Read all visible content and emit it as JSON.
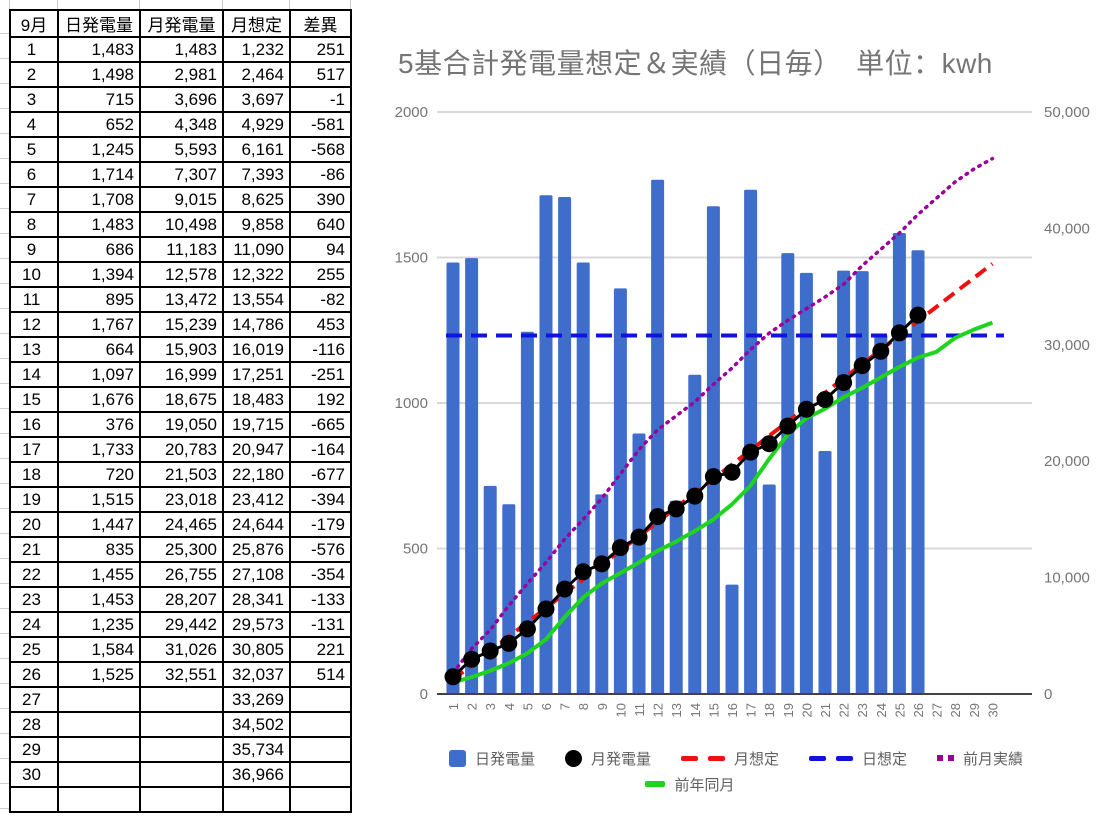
{
  "table": {
    "headers": [
      "9月",
      "日発電量",
      "月発電量",
      "月想定",
      "差異"
    ],
    "rows": [
      [
        "1",
        "1,483",
        "1,483",
        "1,232",
        "251",
        "pos"
      ],
      [
        "2",
        "1,498",
        "2,981",
        "2,464",
        "517",
        "pos"
      ],
      [
        "3",
        "715",
        "3,696",
        "3,697",
        "-1",
        "neg"
      ],
      [
        "4",
        "652",
        "4,348",
        "4,929",
        "-581",
        "neg"
      ],
      [
        "5",
        "1,245",
        "5,593",
        "6,161",
        "-568",
        "neg"
      ],
      [
        "6",
        "1,714",
        "7,307",
        "7,393",
        "-86",
        "neg"
      ],
      [
        "7",
        "1,708",
        "9,015",
        "8,625",
        "390",
        "pos"
      ],
      [
        "8",
        "1,483",
        "10,498",
        "9,858",
        "640",
        "pos"
      ],
      [
        "9",
        "686",
        "11,183",
        "11,090",
        "94",
        "pos"
      ],
      [
        "10",
        "1,394",
        "12,578",
        "12,322",
        "255",
        "pos"
      ],
      [
        "11",
        "895",
        "13,472",
        "13,554",
        "-82",
        "neg"
      ],
      [
        "12",
        "1,767",
        "15,239",
        "14,786",
        "453",
        "pos"
      ],
      [
        "13",
        "664",
        "15,903",
        "16,019",
        "-116",
        "neg"
      ],
      [
        "14",
        "1,097",
        "16,999",
        "17,251",
        "-251",
        "neg"
      ],
      [
        "15",
        "1,676",
        "18,675",
        "18,483",
        "192",
        "pos"
      ],
      [
        "16",
        "376",
        "19,050",
        "19,715",
        "-665",
        "neg"
      ],
      [
        "17",
        "1,733",
        "20,783",
        "20,947",
        "-164",
        "neg"
      ],
      [
        "18",
        "720",
        "21,503",
        "22,180",
        "-677",
        "neg"
      ],
      [
        "19",
        "1,515",
        "23,018",
        "23,412",
        "-394",
        "neg"
      ],
      [
        "20",
        "1,447",
        "24,465",
        "24,644",
        "-179",
        "neg"
      ],
      [
        "21",
        "835",
        "25,300",
        "25,876",
        "-576",
        "neg"
      ],
      [
        "22",
        "1,455",
        "26,755",
        "27,108",
        "-354",
        "neg"
      ],
      [
        "23",
        "1,453",
        "28,207",
        "28,341",
        "-133",
        "neg"
      ],
      [
        "24",
        "1,235",
        "29,442",
        "29,573",
        "-131",
        "neg"
      ],
      [
        "25",
        "1,584",
        "31,026",
        "30,805",
        "221",
        "pos"
      ],
      [
        "26",
        "1,525",
        "32,551",
        "32,037",
        "514",
        "pos"
      ],
      [
        "27",
        "",
        "",
        "33,269",
        "",
        ""
      ],
      [
        "28",
        "",
        "",
        "34,502",
        "",
        ""
      ],
      [
        "29",
        "",
        "",
        "35,734",
        "",
        ""
      ],
      [
        "30",
        "",
        "",
        "36,966",
        "",
        ""
      ]
    ]
  },
  "chart": {
    "title": "5基合計発電量想定＆実績（日毎）　単位：kwh",
    "legend": [
      {
        "label": "日発電量",
        "marker": "square",
        "color": "#3e6dcb",
        "row": 1
      },
      {
        "label": "月発電量",
        "marker": "circle",
        "color": "#000000",
        "row": 1
      },
      {
        "label": "月想定",
        "marker": "dashes",
        "color": "#ee1111",
        "row": 1
      },
      {
        "label": "日想定",
        "marker": "dashes",
        "color": "#1212dd",
        "row": 1
      },
      {
        "label": "前月実績",
        "marker": "dots",
        "color": "#990099",
        "row": 1
      },
      {
        "label": "前年同月",
        "marker": "dash",
        "color": "#1fd41f",
        "row": 2
      }
    ]
  },
  "chart_data": {
    "type": "combo",
    "title": "5基合計発電量想定＆実績（日毎）　単位：kwh",
    "x_labels": [
      1,
      2,
      3,
      4,
      5,
      6,
      7,
      8,
      9,
      10,
      11,
      12,
      13,
      14,
      15,
      16,
      17,
      18,
      19,
      20,
      21,
      22,
      23,
      24,
      25,
      26,
      27,
      28,
      29,
      30
    ],
    "left_axis": {
      "max": 2000,
      "ticks": [
        0,
        500,
        1000,
        1500,
        2000
      ]
    },
    "right_axis": {
      "max": 50000,
      "ticks": [
        0,
        10000,
        20000,
        30000,
        40000,
        50000
      ]
    },
    "series": [
      {
        "name": "日発電量",
        "type": "bar",
        "axis": "left",
        "color": "#3e6dcb",
        "values": [
          1483,
          1498,
          715,
          652,
          1245,
          1714,
          1708,
          1483,
          686,
          1394,
          895,
          1767,
          664,
          1097,
          1676,
          376,
          1733,
          720,
          1515,
          1447,
          835,
          1455,
          1453,
          1235,
          1584,
          1525,
          null,
          null,
          null,
          null
        ]
      },
      {
        "name": "月発電量",
        "type": "line_dots",
        "axis": "right",
        "color": "#000000",
        "values": [
          1483,
          2981,
          3696,
          4348,
          5593,
          7307,
          9015,
          10498,
          11183,
          12578,
          13472,
          15239,
          15903,
          16999,
          18675,
          19050,
          20783,
          21503,
          23018,
          24465,
          25300,
          26755,
          28207,
          29442,
          31026,
          32551,
          null,
          null,
          null,
          null
        ]
      },
      {
        "name": "月想定",
        "type": "line_dashed",
        "axis": "right",
        "color": "#ee1111",
        "values": [
          1232,
          2464,
          3697,
          4929,
          6161,
          7393,
          8625,
          9858,
          11090,
          12322,
          13554,
          14786,
          16019,
          17251,
          18483,
          19715,
          20947,
          22180,
          23412,
          24644,
          25876,
          27108,
          28341,
          29573,
          30805,
          32037,
          33269,
          34502,
          35734,
          36966
        ]
      },
      {
        "name": "日想定",
        "type": "line_dashed",
        "axis": "left",
        "color": "#1212dd",
        "values": [
          1232,
          1232,
          1232,
          1232,
          1232,
          1232,
          1232,
          1232,
          1232,
          1232,
          1232,
          1232,
          1232,
          1232,
          1232,
          1232,
          1232,
          1232,
          1232,
          1232,
          1232,
          1232,
          1232,
          1232,
          1232,
          1232,
          1232,
          1232,
          1232,
          1232
        ]
      },
      {
        "name": "前月実績",
        "type": "line_dotted",
        "axis": "right",
        "color": "#990099",
        "values": [
          1800,
          3900,
          5500,
          7600,
          9500,
          11300,
          13300,
          15000,
          16800,
          18900,
          21000,
          22700,
          23900,
          25100,
          26600,
          28000,
          29600,
          31000,
          32100,
          33100,
          34100,
          35200,
          36800,
          38200,
          39600,
          41200,
          42600,
          44000,
          45100,
          46000
        ]
      },
      {
        "name": "前年同月",
        "type": "line_solid",
        "axis": "right",
        "color": "#1fd41f",
        "values": [
          1000,
          1450,
          2000,
          2650,
          3500,
          4700,
          6600,
          8300,
          9500,
          10400,
          11300,
          12300,
          13100,
          14000,
          15000,
          16300,
          17900,
          20200,
          22300,
          23700,
          24500,
          25500,
          26300,
          27200,
          28100,
          28900,
          29400,
          30600,
          31300,
          31900
        ]
      }
    ]
  }
}
